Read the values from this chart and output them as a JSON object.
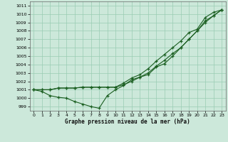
{
  "xlabel": "Graphe pression niveau de la mer (hPa)",
  "xlim": [
    -0.5,
    23.5
  ],
  "ylim": [
    998.5,
    1011.5
  ],
  "yticks": [
    999,
    1000,
    1001,
    1002,
    1003,
    1004,
    1005,
    1006,
    1007,
    1008,
    1009,
    1010,
    1011
  ],
  "xticks": [
    0,
    1,
    2,
    3,
    4,
    5,
    6,
    7,
    8,
    9,
    10,
    11,
    12,
    13,
    14,
    15,
    16,
    17,
    18,
    19,
    20,
    21,
    22,
    23
  ],
  "bg_color": "#cce8da",
  "line_color": "#1a5e20",
  "grid_color": "#99ccb3",
  "line1": [
    1001.0,
    1000.8,
    1000.3,
    1000.1,
    1000.0,
    999.6,
    999.3,
    999.0,
    998.8,
    1000.3,
    1001.0,
    1001.5,
    1002.2,
    1002.5,
    1002.8,
    1003.7,
    1004.1,
    1005.0,
    1006.0,
    1007.0,
    1008.0,
    1009.0,
    1009.8,
    1010.5
  ],
  "line2": [
    1001.0,
    1001.0,
    1001.0,
    1001.2,
    1001.2,
    1001.2,
    1001.3,
    1001.3,
    1001.3,
    1001.3,
    1001.3,
    1001.6,
    1002.0,
    1002.5,
    1003.0,
    1003.8,
    1004.5,
    1005.3,
    1006.0,
    1007.0,
    1008.0,
    1009.2,
    1009.8,
    1010.5
  ],
  "line3": [
    1001.0,
    1001.0,
    1001.0,
    1001.2,
    1001.2,
    1001.2,
    1001.3,
    1001.3,
    1001.3,
    1001.3,
    1001.3,
    1001.8,
    1002.4,
    1002.8,
    1003.5,
    1004.4,
    1005.2,
    1006.0,
    1006.8,
    1007.8,
    1008.2,
    1009.6,
    1010.2,
    1010.5
  ]
}
